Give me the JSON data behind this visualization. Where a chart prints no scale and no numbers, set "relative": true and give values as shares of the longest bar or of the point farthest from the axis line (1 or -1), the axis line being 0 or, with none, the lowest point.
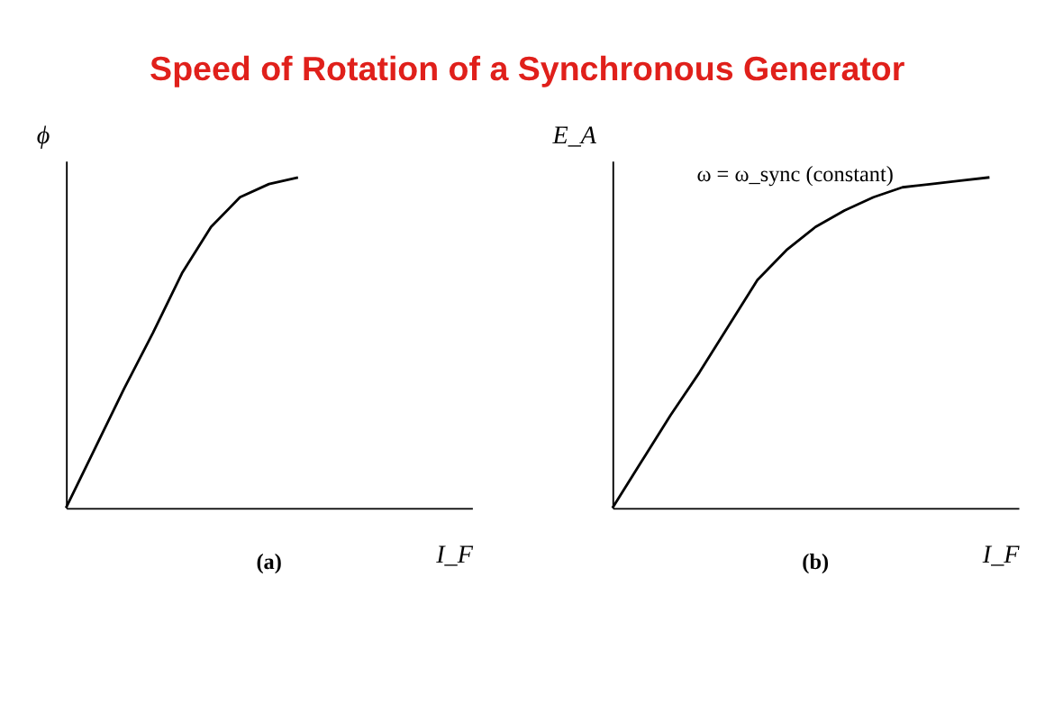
{
  "chart_data": [
    {
      "type": "line",
      "title": "Speed of Rotation of a Synchronous Generator",
      "relative": true,
      "xlabel": "I_F",
      "ylabel": "ϕ",
      "tick_labels": false,
      "grid": false,
      "annotations": [
        "(a)"
      ],
      "categories": [
        null,
        null,
        null,
        null,
        null,
        null,
        null,
        null,
        null,
        null,
        null,
        null,
        null,
        null,
        null
      ],
      "series": [
        {
          "color": "#000000",
          "values": [
            0,
            0.18,
            0.36,
            0.53,
            0.71,
            0.85,
            0.94,
            0.98,
            1.0,
            null,
            null,
            null,
            null,
            null,
            null
          ]
        }
      ]
    },
    {
      "type": "line",
      "relative": true,
      "xlabel": "I_F",
      "ylabel": "E_A",
      "tick_labels": false,
      "grid": false,
      "annotations": [
        "ω = ω_sync (constant)",
        "(b)"
      ],
      "categories": [
        null,
        null,
        null,
        null,
        null,
        null,
        null,
        null,
        null,
        null,
        null,
        null,
        null,
        null,
        null
      ],
      "series": [
        {
          "color": "#000000",
          "values": [
            0,
            0.14,
            0.28,
            0.41,
            0.55,
            0.69,
            0.78,
            0.85,
            0.9,
            0.94,
            0.97,
            0.98,
            0.99,
            1.0,
            null
          ]
        }
      ]
    }
  ]
}
